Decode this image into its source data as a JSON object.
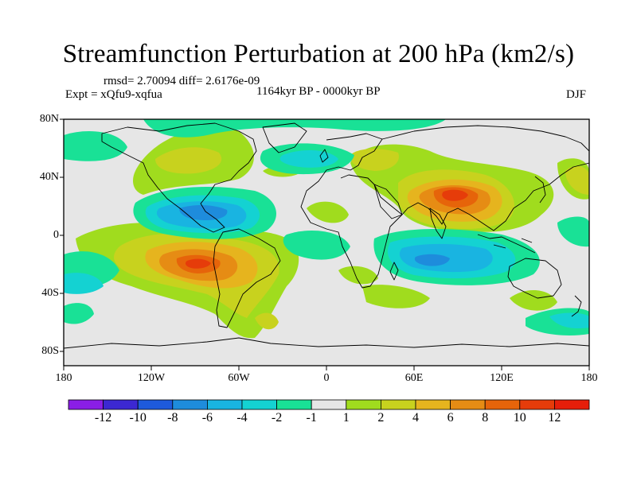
{
  "figure": {
    "title": "Streamfunction Perturbation at 200 hPa (km2/s)",
    "stats": "rmsd= 2.70094 diff= 2.6176e-09",
    "experiment": "Expt = xQfu9-xqfua",
    "period": "1164kyr BP - 0000kyr BP",
    "season": "DJF"
  },
  "axes": {
    "lat_ticks": [
      "80N",
      "40N",
      "0",
      "40S",
      "80S"
    ],
    "lon_ticks": [
      "180",
      "120W",
      "60W",
      "0",
      "60E",
      "120E",
      "180"
    ]
  },
  "colorbar": {
    "labels": [
      "-12",
      "-10",
      "-8",
      "-6",
      "-4",
      "-2",
      "-1",
      "1",
      "2",
      "4",
      "6",
      "8",
      "10",
      "12"
    ],
    "colors": [
      "#8a1ee6",
      "#3c28d2",
      "#1e5adc",
      "#1e8cdc",
      "#19b4e1",
      "#14d2d2",
      "#19e196",
      "#e6e6e6",
      "#a0dc1e",
      "#c8d21e",
      "#e6b41e",
      "#e68c14",
      "#e6640a",
      "#e63c0a",
      "#e61e0a"
    ]
  },
  "colors": {
    "land_outline": "#000000",
    "background": "#e6e6e6"
  }
}
